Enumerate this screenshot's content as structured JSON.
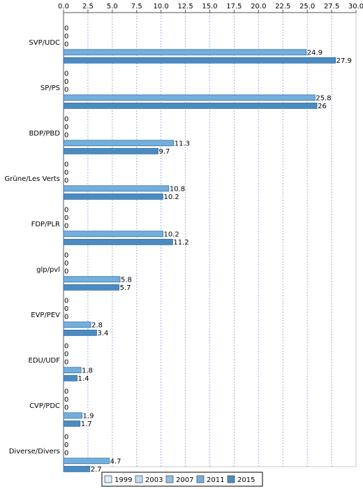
{
  "chart_data": {
    "type": "bar",
    "orientation": "horizontal",
    "xlim": [
      0,
      30
    ],
    "xticks": [
      "0.0",
      "2.5",
      "5.0",
      "7.5",
      "10.0",
      "12.5",
      "15.0",
      "17.5",
      "20.0",
      "22.5",
      "25.0",
      "27.5",
      "30.0"
    ],
    "grid": true,
    "legend_position": "bottom-center",
    "categories": [
      "SVP/UDC",
      "SP/PS",
      "BDP/PBD",
      "Grüne/Les Verts",
      "FDP/PLR",
      "glp/pvl",
      "EVP/PEV",
      "EDU/UDF",
      "CVP/PDC",
      "Diverse/Divers"
    ],
    "series": [
      {
        "name": "1999",
        "color": "#ddeef8",
        "values": [
          0,
          0,
          0,
          0,
          0,
          0,
          0,
          0,
          0,
          0
        ],
        "labels": [
          "0",
          "0",
          "0",
          "0",
          "0",
          "0",
          "0",
          "0",
          "0",
          "0"
        ]
      },
      {
        "name": "2003",
        "color": "#bfdcf0",
        "values": [
          0,
          0,
          0,
          0,
          0,
          0,
          0,
          0,
          0,
          0
        ],
        "labels": [
          "0",
          "0",
          "0",
          "0",
          "0",
          "0",
          "0",
          "0",
          "0",
          "0"
        ]
      },
      {
        "name": "2007",
        "color": "#8ec1e3",
        "values": [
          0,
          0,
          0,
          0,
          0,
          0,
          0,
          0,
          0,
          0
        ],
        "labels": [
          "0",
          "0",
          "0",
          "0",
          "0",
          "0",
          "0",
          "0",
          "0",
          "0"
        ]
      },
      {
        "name": "2011",
        "color": "#72afdc",
        "values": [
          24.9,
          25.8,
          11.3,
          10.8,
          10.2,
          5.8,
          2.8,
          1.8,
          1.9,
          4.7
        ],
        "labels": [
          "24.9",
          "25.8",
          "11.3",
          "10.8",
          "10.2",
          "5.8",
          "2.8",
          "1.8",
          "1.9",
          "4.7"
        ]
      },
      {
        "name": "2015",
        "color": "#4a8cc2",
        "values": [
          27.9,
          26,
          9.7,
          10.2,
          11.2,
          5.7,
          3.4,
          1.4,
          1.7,
          2.7
        ],
        "labels": [
          "27.9",
          "26",
          "9.7",
          "10.2",
          "11.2",
          "5.7",
          "3.4",
          "1.4",
          "1.7",
          "2.7"
        ]
      }
    ]
  }
}
